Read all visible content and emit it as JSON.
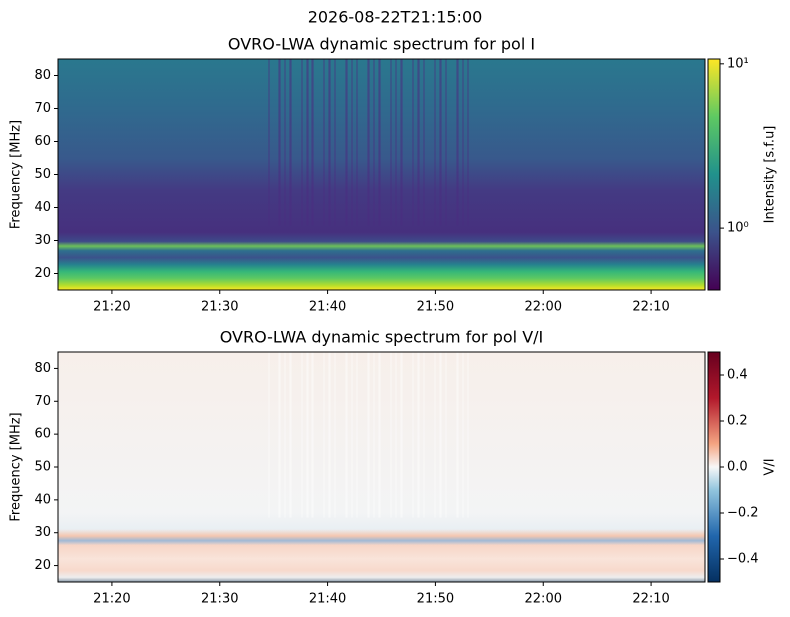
{
  "title": "2026-08-22T21:15:00",
  "chart_data": [
    {
      "type": "heatmap",
      "title": "OVRO-LWA dynamic spectrum for pol I",
      "ylabel": "Frequency [MHz]",
      "xlim": [
        "21:15",
        "22:15"
      ],
      "xticks": [
        "21:20",
        "21:30",
        "21:40",
        "21:50",
        "22:00",
        "22:10"
      ],
      "ylim": [
        15,
        85
      ],
      "yticks": [
        20,
        30,
        40,
        50,
        60,
        70,
        80
      ],
      "colorbar": {
        "label": "Intensity [s.f.u]",
        "scale": "log",
        "lim": [
          0.42,
          10.7
        ],
        "ticks": [
          {
            "value": 1,
            "label": "10⁰"
          },
          {
            "value": 10,
            "label": "10¹"
          }
        ]
      }
    },
    {
      "type": "heatmap",
      "title": "OVRO-LWA dynamic spectrum for pol V/I",
      "ylabel": "Frequency [MHz]",
      "xlim": [
        "21:15",
        "22:15"
      ],
      "xticks": [
        "21:20",
        "21:30",
        "21:40",
        "21:50",
        "22:00",
        "22:10"
      ],
      "ylim": [
        15,
        85
      ],
      "yticks": [
        20,
        30,
        40,
        50,
        60,
        70,
        80
      ],
      "colorbar": {
        "label": "V/I",
        "scale": "linear",
        "lim": [
          -0.5,
          0.5
        ],
        "ticks": [
          {
            "value": -0.4,
            "label": "−0.4"
          },
          {
            "value": -0.2,
            "label": "−0.2"
          },
          {
            "value": 0.0,
            "label": "0.0"
          },
          0.2,
          0.4
        ]
      }
    }
  ]
}
